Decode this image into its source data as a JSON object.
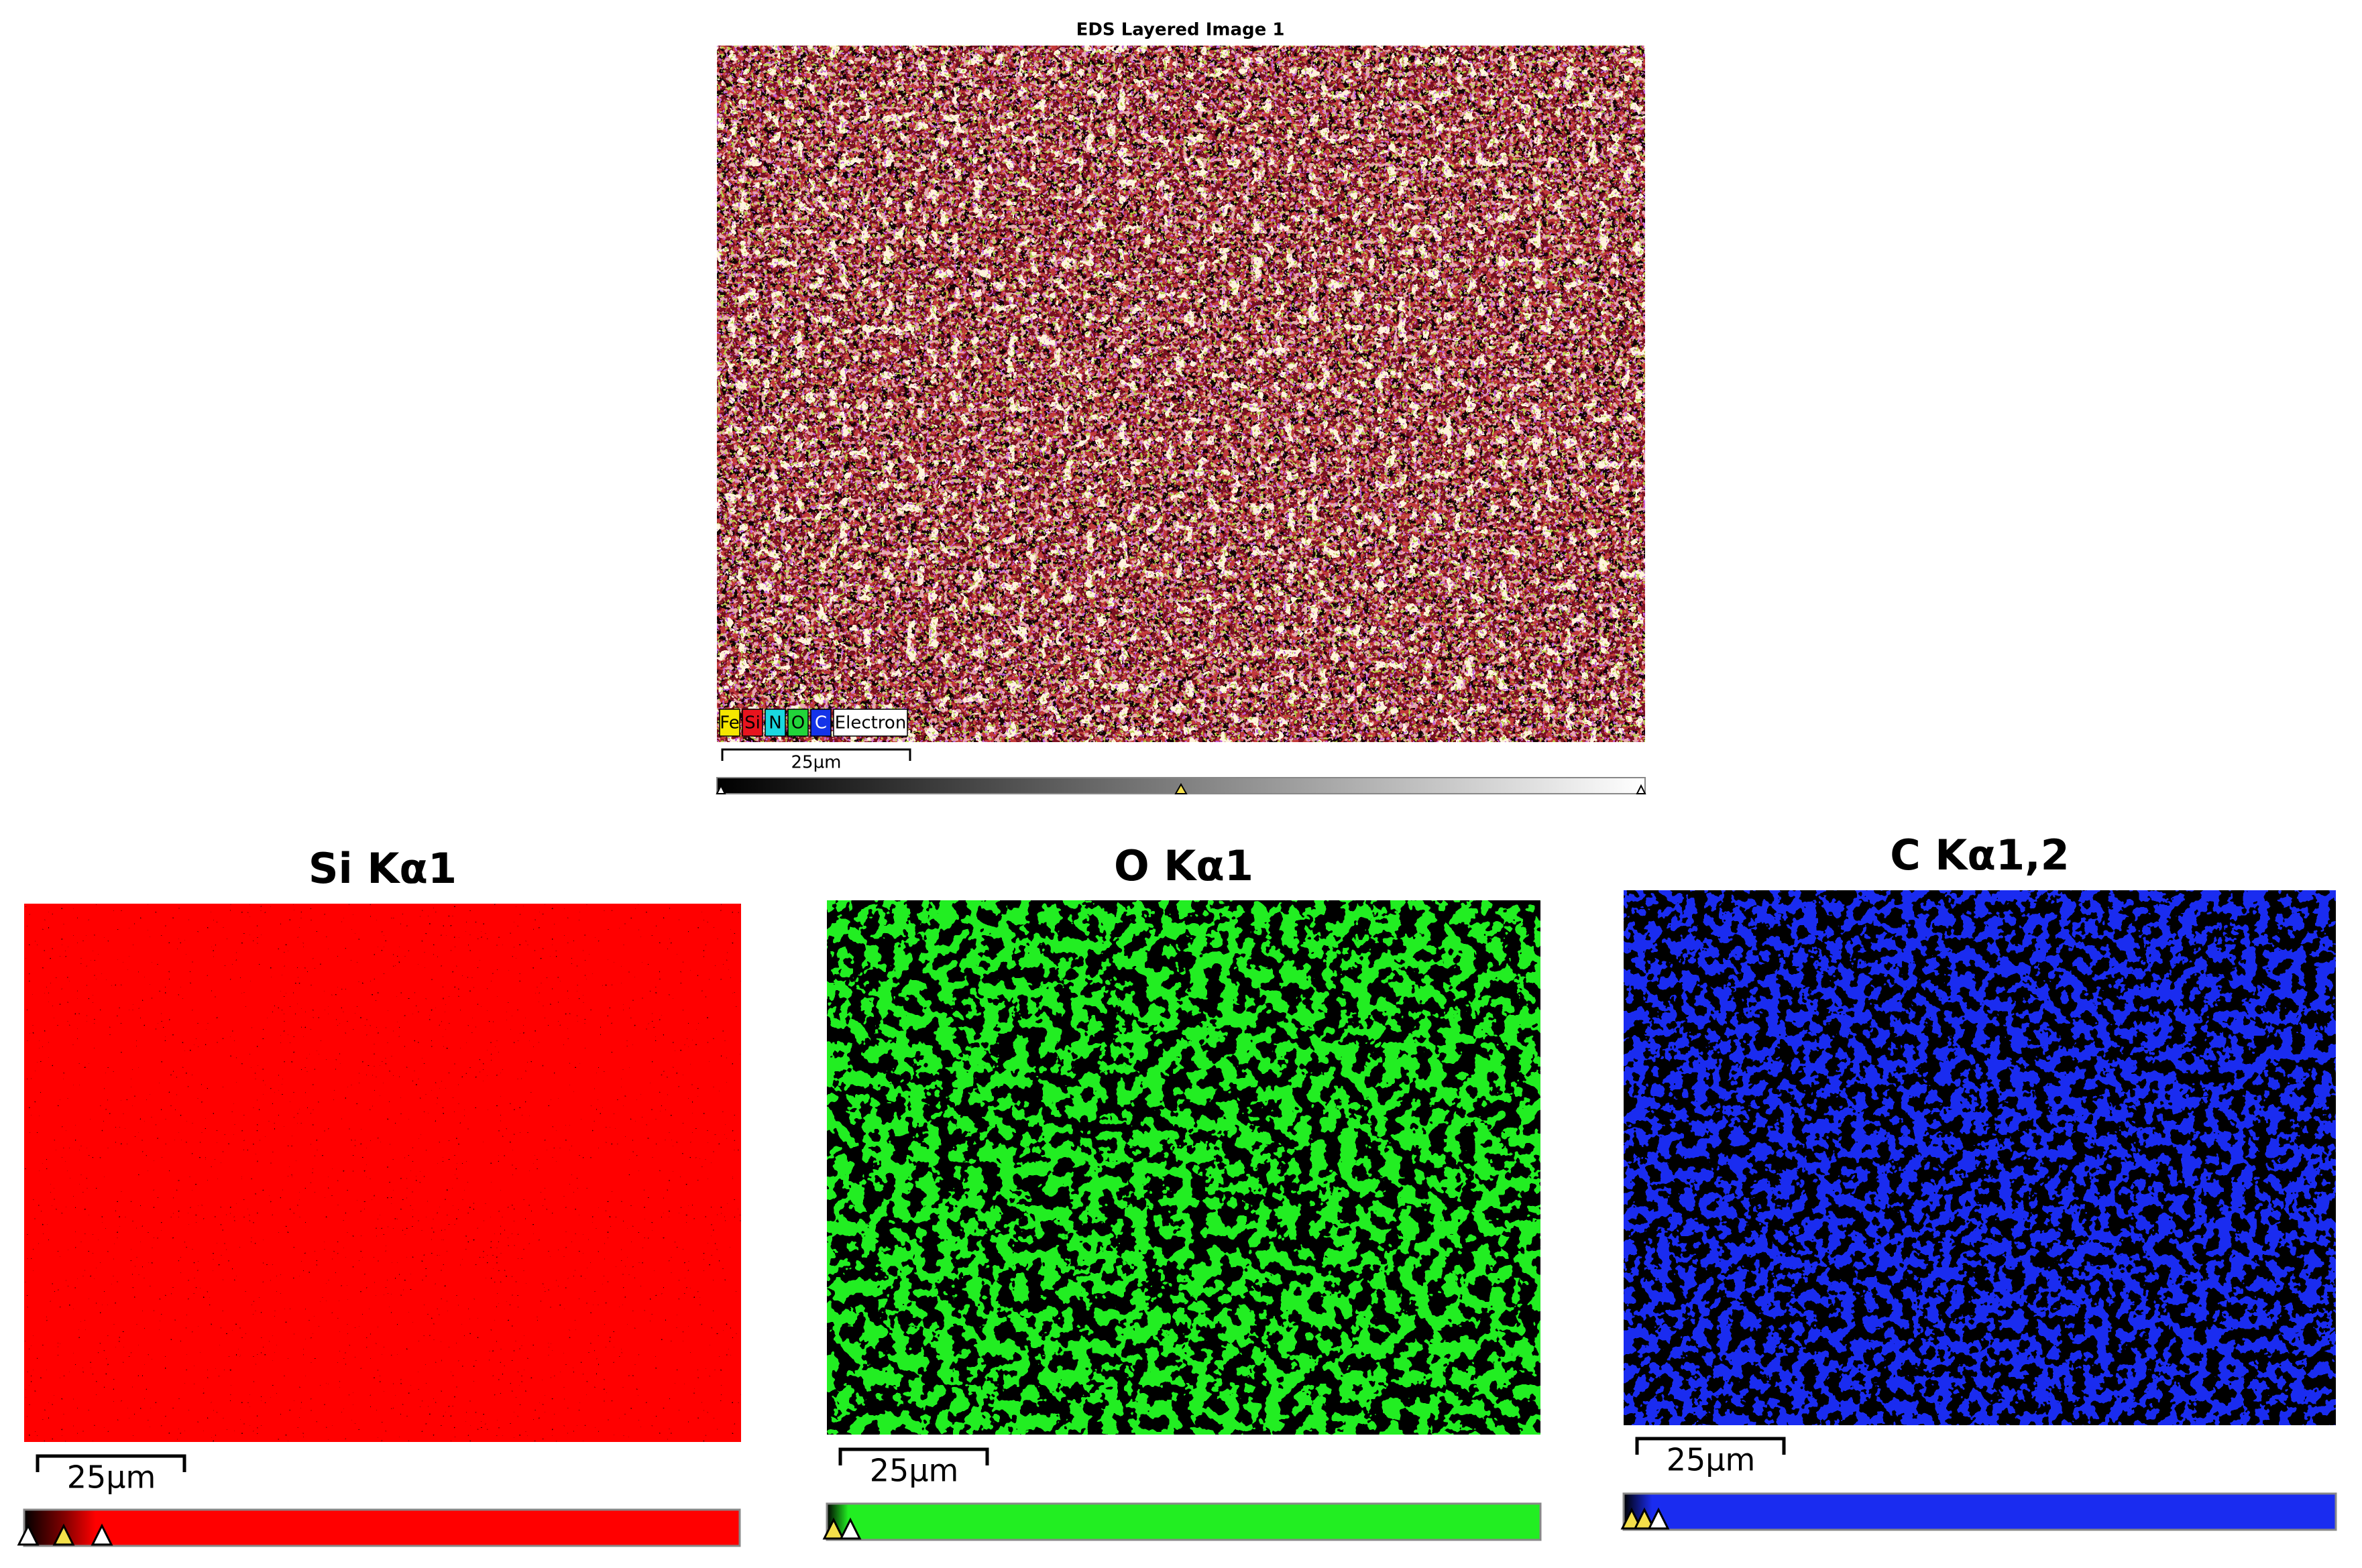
{
  "top": {
    "title": "EDS Layered Image 1",
    "legend": [
      "Fe",
      "Si",
      "N",
      "O",
      "C",
      "Electron"
    ],
    "scale_bar": "25µm"
  },
  "maps": [
    {
      "title": "Si Kα1",
      "scale_bar": "25µm"
    },
    {
      "title": "O Kα1",
      "scale_bar": "25µm"
    },
    {
      "title": "C Kα1,2",
      "scale_bar": "25µm"
    }
  ]
}
